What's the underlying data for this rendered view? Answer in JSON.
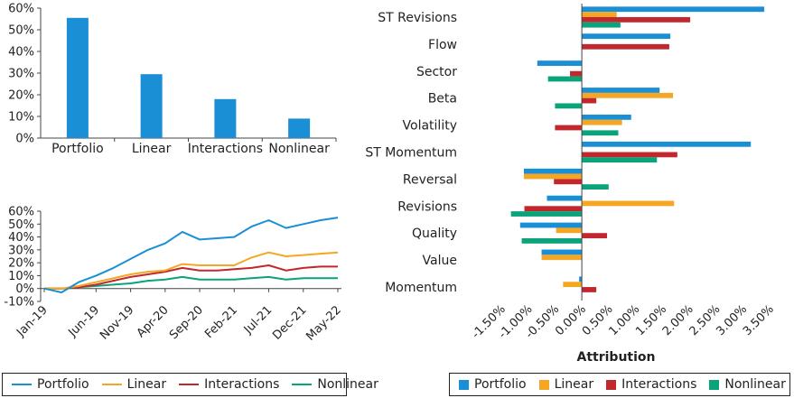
{
  "colors": {
    "Portfolio": "#1a8fd6",
    "Linear": "#f5a623",
    "Interactions": "#c0282e",
    "Nonlinear": "#0aa37a"
  },
  "chart_data": [
    {
      "type": "bar",
      "categories": [
        "Portfolio",
        "Linear",
        "Interactions",
        "Nonlinear"
      ],
      "values": [
        55.5,
        29.5,
        18,
        9
      ],
      "ylim": [
        0,
        60
      ],
      "yticks": [
        "0%",
        "10%",
        "20%",
        "30%",
        "40%",
        "50%",
        "60%"
      ],
      "grid": false
    },
    {
      "type": "line",
      "x": [
        "Jan-19",
        "Mar-19",
        "May-19",
        "Jun-19",
        "Aug-19",
        "Nov-19",
        "Jan-20",
        "Apr-20",
        "Jul-20",
        "Sep-20",
        "Nov-20",
        "Feb-21",
        "Apr-21",
        "Jul-21",
        "Sep-21",
        "Dec-21",
        "Feb-22",
        "May-22"
      ],
      "xticks": [
        "Jan-19",
        "Jun-19",
        "Nov-19",
        "Apr-20",
        "Sep-20",
        "Feb-21",
        "Jul-21",
        "Dec-21",
        "May-22"
      ],
      "yticks": [
        "-10%",
        "0%",
        "10%",
        "20%",
        "30%",
        "40%",
        "50%",
        "60%"
      ],
      "ylim": [
        -10,
        60
      ],
      "series": [
        {
          "name": "Portfolio",
          "values": [
            0,
            -3,
            5,
            10,
            16,
            23,
            30,
            35,
            44,
            38,
            39,
            40,
            48,
            53,
            47,
            50,
            53,
            55
          ]
        },
        {
          "name": "Linear",
          "values": [
            0,
            0,
            2,
            5,
            8,
            11,
            13,
            14,
            19,
            18,
            18,
            18,
            24,
            28,
            25,
            26,
            27,
            28
          ]
        },
        {
          "name": "Interactions",
          "values": [
            0,
            0,
            1,
            3,
            6,
            9,
            11,
            13,
            16,
            14,
            14,
            15,
            16,
            18,
            14,
            16,
            17,
            17
          ]
        },
        {
          "name": "Nonlinear",
          "values": [
            0,
            0,
            1,
            2,
            3,
            4,
            6,
            7,
            9,
            7,
            7,
            7,
            8,
            9,
            7,
            8,
            8,
            8
          ]
        }
      ],
      "legend": [
        "Portfolio",
        "Linear",
        "Interactions",
        "Nonlinear"
      ]
    },
    {
      "type": "bar",
      "orientation": "horizontal",
      "xlabel": "Attribution",
      "categories": [
        "ST Revisions",
        "Flow",
        "Sector",
        "Beta",
        "Volatility",
        "ST Momentum",
        "Reversal",
        "Revisions",
        "Quality",
        "Value",
        "Momentum"
      ],
      "xlim": [
        -1.5,
        3.5
      ],
      "xticks": [
        "-1.50%",
        "-1.00%",
        "-0.50%",
        "0.00%",
        "0.50%",
        "1.00%",
        "1.50%",
        "2.00%",
        "2.50%",
        "3.00%",
        "3.50%"
      ],
      "series": [
        {
          "name": "Portfolio",
          "values": [
            3.4,
            1.65,
            -0.83,
            1.45,
            0.92,
            3.15,
            -1.08,
            -0.65,
            -1.15,
            -0.75,
            -0.05
          ]
        },
        {
          "name": "Linear",
          "values": [
            0.65,
            0.0,
            0.0,
            1.7,
            0.75,
            0.0,
            -1.08,
            1.72,
            -0.48,
            -0.75,
            -0.35
          ]
        },
        {
          "name": "Interactions",
          "values": [
            2.02,
            1.63,
            -0.22,
            0.27,
            -0.5,
            1.78,
            -0.52,
            -1.07,
            0.47,
            0.0,
            0.27
          ]
        },
        {
          "name": "Nonlinear",
          "values": [
            0.72,
            0.0,
            -0.63,
            -0.5,
            0.68,
            1.4,
            0.5,
            -1.32,
            -1.12,
            0.0,
            0.0
          ]
        }
      ],
      "legend": [
        "Portfolio",
        "Linear",
        "Interactions",
        "Nonlinear"
      ]
    }
  ]
}
